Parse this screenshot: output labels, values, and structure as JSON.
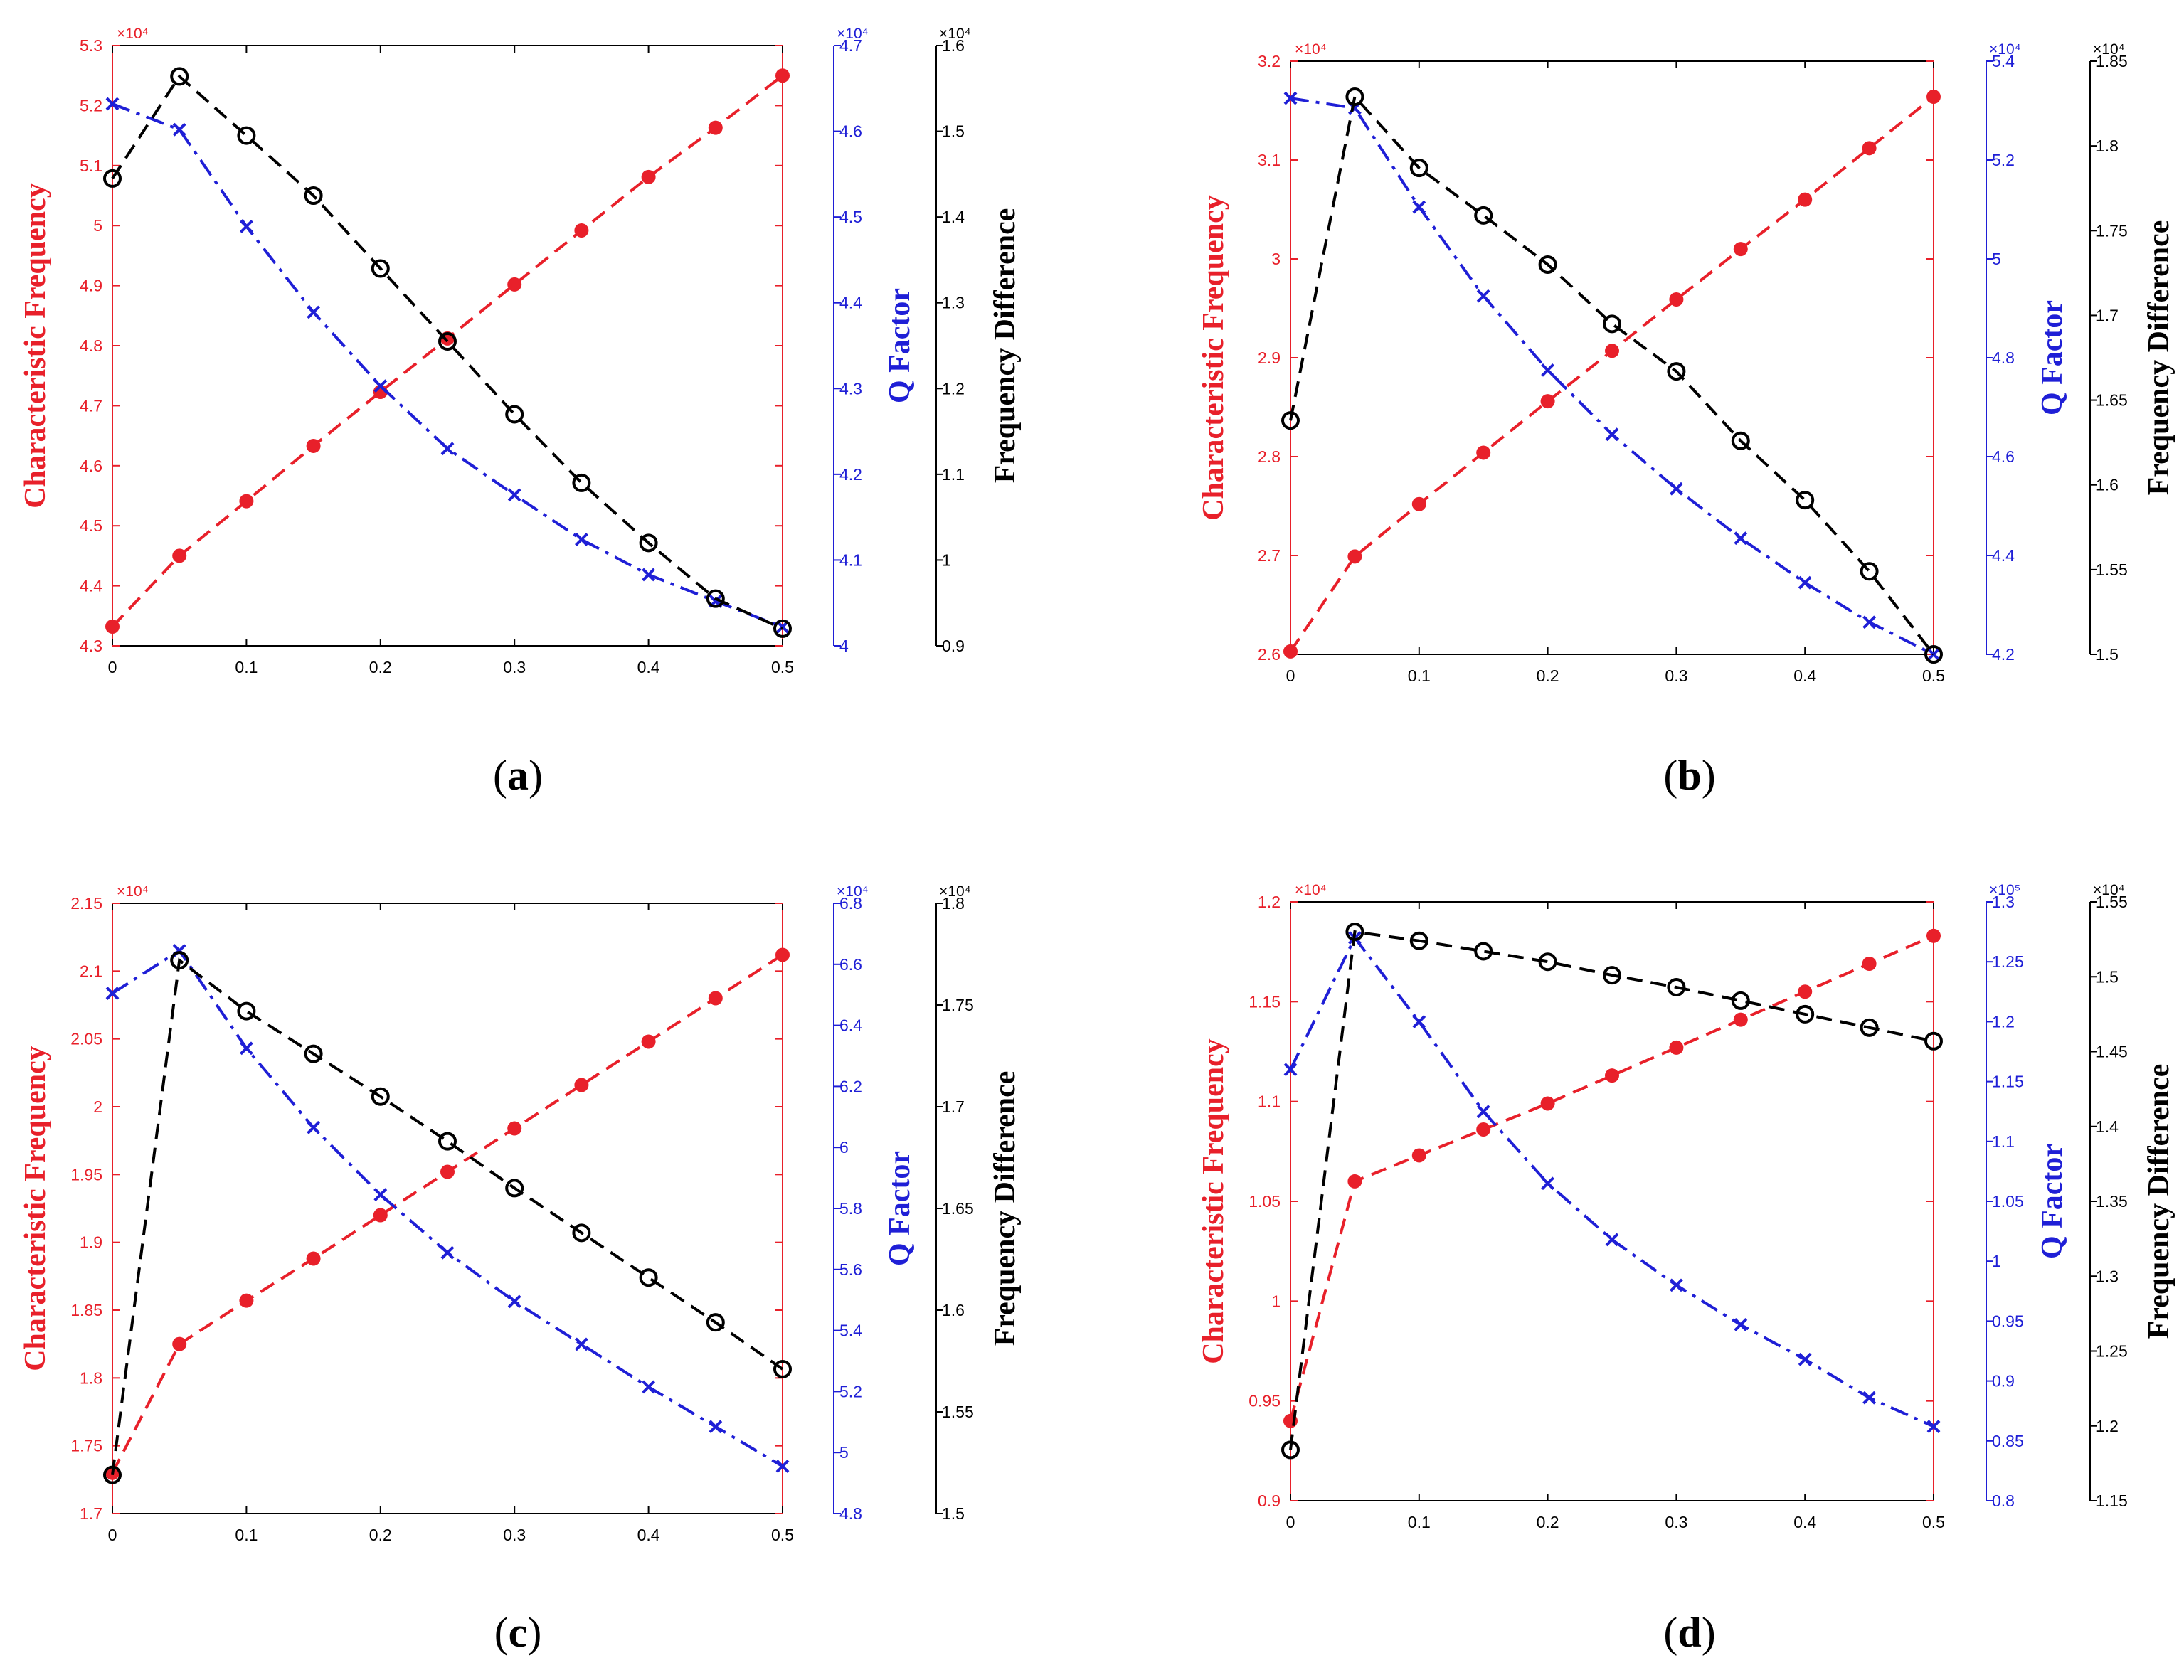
{
  "colors": {
    "red": "#e8202a",
    "blue": "#1f1fd6",
    "black": "#000000",
    "axis": "#000000"
  },
  "axis_titles": {
    "left": "Characteristic Frequency",
    "q": "Q Factor",
    "fd": "Frequency Difference"
  },
  "chart_data": [
    {
      "type": "line",
      "panel": "a",
      "label_letter": "a",
      "x": [
        0,
        0.05,
        0.1,
        0.15,
        0.2,
        0.25,
        0.3,
        0.35,
        0.4,
        0.45,
        0.5
      ],
      "xlim": [
        0,
        0.5
      ],
      "xticks": [
        0,
        0.1,
        0.2,
        0.3,
        0.4,
        0.5
      ],
      "xtick_labels": [
        "0",
        "0.1",
        "0.2",
        "0.3",
        "0.4",
        "0.5"
      ],
      "axes": {
        "left": {
          "title": "Characteristic Frequency",
          "exponent": "×10⁴",
          "ylim": [
            4.3,
            5.3
          ],
          "ticks": [
            4.3,
            4.4,
            4.5,
            4.6,
            4.7,
            4.8,
            4.9,
            5,
            5.1,
            5.2,
            5.3
          ],
          "tick_labels": [
            "4.3",
            "4.4",
            "4.5",
            "4.6",
            "4.7",
            "4.8",
            "4.9",
            "5",
            "5.1",
            "5.2",
            "5.3"
          ]
        },
        "q": {
          "title": "Q Factor",
          "exponent": "×10⁴",
          "ylim": [
            4.0,
            4.7
          ],
          "ticks": [
            4.0,
            4.1,
            4.2,
            4.3,
            4.4,
            4.5,
            4.6,
            4.7
          ],
          "tick_labels": [
            "4",
            "4.1",
            "4.2",
            "4.3",
            "4.4",
            "4.5",
            "4.6",
            "4.7"
          ]
        },
        "fd": {
          "title": "Frequency Difference",
          "exponent": "×10⁴",
          "ylim": [
            0.9,
            1.6
          ],
          "ticks": [
            0.9,
            1.0,
            1.1,
            1.2,
            1.3,
            1.4,
            1.5,
            1.6
          ],
          "tick_labels": [
            "0.9",
            "1",
            "1.1",
            "1.2",
            "1.3",
            "1.4",
            "1.5",
            "1.6"
          ]
        }
      },
      "series": [
        {
          "name": "Characteristic Frequency",
          "axis": "left",
          "color": "#e8202a",
          "marker": "dot",
          "dash": "dashed",
          "values": [
            4.332,
            4.45,
            4.541,
            4.633,
            4.723,
            4.812,
            4.902,
            4.992,
            5.081,
            5.163,
            5.25
          ]
        },
        {
          "name": "Q Factor",
          "axis": "q",
          "color": "#1f1fd6",
          "marker": "x",
          "dash": "dashdot",
          "values": [
            4.632,
            4.602,
            4.489,
            4.389,
            4.303,
            4.23,
            4.176,
            4.124,
            4.083,
            4.052,
            4.022
          ]
        },
        {
          "name": "Frequency Difference",
          "axis": "fd",
          "color": "#000000",
          "marker": "circle",
          "dash": "dashed",
          "values": [
            1.445,
            1.564,
            1.495,
            1.425,
            1.34,
            1.255,
            1.17,
            1.09,
            1.02,
            0.955,
            0.92
          ]
        }
      ]
    },
    {
      "type": "line",
      "panel": "b",
      "label_letter": "b",
      "x": [
        0,
        0.05,
        0.1,
        0.15,
        0.2,
        0.25,
        0.3,
        0.35,
        0.4,
        0.45,
        0.5
      ],
      "xlim": [
        0,
        0.5
      ],
      "xticks": [
        0,
        0.1,
        0.2,
        0.3,
        0.4,
        0.5
      ],
      "xtick_labels": [
        "0",
        "0.1",
        "0.2",
        "0.3",
        "0.4",
        "0.5"
      ],
      "axes": {
        "left": {
          "title": "Characteristic Frequency",
          "exponent": "×10⁴",
          "ylim": [
            2.6,
            3.2
          ],
          "ticks": [
            2.6,
            2.7,
            2.8,
            2.9,
            3.0,
            3.1,
            3.2
          ],
          "tick_labels": [
            "2.6",
            "2.7",
            "2.8",
            "2.9",
            "3",
            "3.1",
            "3.2"
          ]
        },
        "q": {
          "title": "Q Factor",
          "exponent": "×10⁴",
          "ylim": [
            4.2,
            5.4
          ],
          "ticks": [
            4.2,
            4.4,
            4.6,
            4.8,
            5.0,
            5.2,
            5.4
          ],
          "tick_labels": [
            "4.2",
            "4.4",
            "4.6",
            "4.8",
            "5",
            "5.2",
            "5.4"
          ]
        },
        "fd": {
          "title": "Frequency Difference",
          "exponent": "×10⁴",
          "ylim": [
            1.5,
            1.85
          ],
          "ticks": [
            1.5,
            1.55,
            1.6,
            1.65,
            1.7,
            1.75,
            1.8,
            1.85
          ],
          "tick_labels": [
            "1.5",
            "1.55",
            "1.6",
            "1.65",
            "1.7",
            "1.75",
            "1.8",
            "1.85"
          ]
        }
      },
      "series": [
        {
          "name": "Characteristic Frequency",
          "axis": "left",
          "color": "#e8202a",
          "marker": "dot",
          "dash": "dashed",
          "values": [
            2.603,
            2.699,
            2.752,
            2.804,
            2.856,
            2.907,
            2.959,
            3.01,
            3.06,
            3.112,
            3.164
          ]
        },
        {
          "name": "Q Factor",
          "axis": "q",
          "color": "#1f1fd6",
          "marker": "x",
          "dash": "dashdot",
          "values": [
            5.325,
            5.305,
            5.105,
            4.925,
            4.775,
            4.645,
            4.535,
            4.435,
            4.345,
            4.265,
            4.2
          ]
        },
        {
          "name": "Frequency Difference",
          "axis": "fd",
          "color": "#000000",
          "marker": "circle",
          "dash": "dashed",
          "values": [
            1.638,
            1.829,
            1.787,
            1.759,
            1.73,
            1.695,
            1.667,
            1.626,
            1.591,
            1.549,
            1.5
          ]
        }
      ]
    },
    {
      "type": "line",
      "panel": "c",
      "label_letter": "c",
      "x": [
        0,
        0.05,
        0.1,
        0.15,
        0.2,
        0.25,
        0.3,
        0.35,
        0.4,
        0.45,
        0.5
      ],
      "xlim": [
        0,
        0.5
      ],
      "xticks": [
        0,
        0.1,
        0.2,
        0.3,
        0.4,
        0.5
      ],
      "xtick_labels": [
        "0",
        "0.1",
        "0.2",
        "0.3",
        "0.4",
        "0.5"
      ],
      "axes": {
        "left": {
          "title": "Characteristic Frequency",
          "exponent": "×10⁴",
          "ylim": [
            1.7,
            2.15
          ],
          "ticks": [
            1.7,
            1.75,
            1.8,
            1.85,
            1.9,
            1.95,
            2.0,
            2.05,
            2.1,
            2.15
          ],
          "tick_labels": [
            "1.7",
            "1.75",
            "1.8",
            "1.85",
            "1.9",
            "1.95",
            "2",
            "2.05",
            "2.1",
            "2.15"
          ]
        },
        "q": {
          "title": "Q Factor",
          "exponent": "×10⁴",
          "ylim": [
            4.8,
            6.8
          ],
          "ticks": [
            4.8,
            5.0,
            5.2,
            5.4,
            5.6,
            5.8,
            6.0,
            6.2,
            6.4,
            6.6,
            6.8
          ],
          "tick_labels": [
            "4.8",
            "5",
            "5.2",
            "5.4",
            "5.6",
            "5.8",
            "6",
            "6.2",
            "6.4",
            "6.6",
            "6.8"
          ]
        },
        "fd": {
          "title": "Frequency Difference",
          "exponent": "×10⁴",
          "ylim": [
            1.5,
            1.8
          ],
          "ticks": [
            1.5,
            1.55,
            1.6,
            1.65,
            1.7,
            1.75,
            1.8
          ],
          "tick_labels": [
            "1.5",
            "1.55",
            "1.6",
            "1.65",
            "1.7",
            "1.75",
            "1.8"
          ]
        }
      },
      "series": [
        {
          "name": "Characteristic Frequency",
          "axis": "left",
          "color": "#e8202a",
          "marker": "dot",
          "dash": "dashed",
          "values": [
            1.73,
            1.825,
            1.857,
            1.888,
            1.92,
            1.952,
            1.984,
            2.016,
            2.048,
            2.08,
            2.112
          ]
        },
        {
          "name": "Q Factor",
          "axis": "q",
          "color": "#1f1fd6",
          "marker": "x",
          "dash": "dashdot",
          "values": [
            6.505,
            6.645,
            6.325,
            6.065,
            5.845,
            5.655,
            5.495,
            5.355,
            5.215,
            5.085,
            4.955
          ]
        },
        {
          "name": "Frequency Difference",
          "axis": "fd",
          "color": "#000000",
          "marker": "circle",
          "dash": "dashed",
          "values": [
            1.519,
            1.772,
            1.747,
            1.726,
            1.705,
            1.683,
            1.66,
            1.638,
            1.616,
            1.594,
            1.571
          ]
        }
      ]
    },
    {
      "type": "line",
      "panel": "d",
      "label_letter": "d",
      "x": [
        0,
        0.05,
        0.1,
        0.15,
        0.2,
        0.25,
        0.3,
        0.35,
        0.4,
        0.45,
        0.5
      ],
      "xlim": [
        0,
        0.5
      ],
      "xticks": [
        0,
        0.1,
        0.2,
        0.3,
        0.4,
        0.5
      ],
      "xtick_labels": [
        "0",
        "0.1",
        "0.2",
        "0.3",
        "0.4",
        "0.5"
      ],
      "axes": {
        "left": {
          "title": "Characteristic Frequency",
          "exponent": "×10⁴",
          "ylim": [
            0.9,
            1.2
          ],
          "ticks": [
            0.9,
            0.95,
            1.0,
            1.05,
            1.1,
            1.15,
            1.2
          ],
          "tick_labels": [
            "0.9",
            "0.95",
            "1",
            "1.05",
            "1.1",
            "1.15",
            "1.2"
          ]
        },
        "q": {
          "title": "Q Factor",
          "exponent": "×10⁵",
          "ylim": [
            0.8,
            1.3
          ],
          "ticks": [
            0.8,
            0.85,
            0.9,
            0.95,
            1.0,
            1.05,
            1.1,
            1.15,
            1.2,
            1.25,
            1.3
          ],
          "tick_labels": [
            "0.8",
            "0.85",
            "0.9",
            "0.95",
            "1",
            "1.05",
            "1.1",
            "1.15",
            "1.2",
            "1.25",
            "1.3"
          ]
        },
        "fd": {
          "title": "Frequency Difference",
          "exponent": "×10⁴",
          "ylim": [
            1.15,
            1.55
          ],
          "ticks": [
            1.15,
            1.2,
            1.25,
            1.3,
            1.35,
            1.4,
            1.45,
            1.5,
            1.55
          ],
          "tick_labels": [
            "1.15",
            "1.2",
            "1.25",
            "1.3",
            "1.35",
            "1.4",
            "1.45",
            "1.5",
            "1.55"
          ]
        }
      },
      "series": [
        {
          "name": "Characteristic Frequency",
          "axis": "left",
          "color": "#e8202a",
          "marker": "dot",
          "dash": "dashed",
          "values": [
            0.94,
            1.06,
            1.073,
            1.086,
            1.099,
            1.113,
            1.127,
            1.141,
            1.155,
            1.169,
            1.183
          ]
        },
        {
          "name": "Q Factor",
          "axis": "q",
          "color": "#1f1fd6",
          "marker": "x",
          "dash": "dashdot",
          "values": [
            1.16,
            1.27,
            1.2,
            1.125,
            1.065,
            1.018,
            0.98,
            0.947,
            0.918,
            0.886,
            0.862
          ]
        },
        {
          "name": "Frequency Difference",
          "axis": "fd",
          "color": "#000000",
          "marker": "circle",
          "dash": "dashed",
          "values": [
            1.184,
            1.53,
            1.524,
            1.517,
            1.51,
            1.501,
            1.493,
            1.484,
            1.475,
            1.466,
            1.457
          ]
        }
      ]
    }
  ]
}
